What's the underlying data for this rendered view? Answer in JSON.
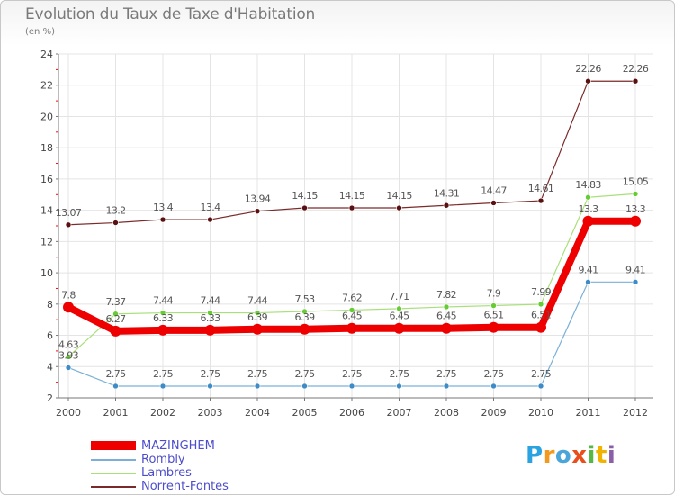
{
  "title": "Evolution du Taux de Taxe d'Habitation",
  "unit": "(en %)",
  "logo_text": "Proxiti",
  "colors": {
    "grid": "#e4e4e4",
    "axis": "#777777",
    "tick_text": "#444444",
    "label_text": "#555555",
    "minor_tick": "#ff0000",
    "legend_text": "#4c4ccc"
  },
  "chart_data": {
    "type": "line",
    "title": "Evolution du Taux de Taxe d'Habitation",
    "ylabel": "(en %)",
    "xlabel": "",
    "ylim": [
      2,
      24
    ],
    "yticks": [
      2,
      4,
      6,
      8,
      10,
      12,
      14,
      16,
      18,
      20,
      22,
      24
    ],
    "grid": true,
    "legend_position": "bottom-left",
    "x": [
      "2000",
      "2001",
      "2002",
      "2003",
      "2004",
      "2005",
      "2006",
      "2007",
      "2008",
      "2009",
      "2010",
      "2011",
      "2012"
    ],
    "series": [
      {
        "name": "Norrent-Fontes",
        "color": "#7a2a2a",
        "marker": "#5a1010",
        "width": 1.2,
        "values": [
          13.07,
          13.2,
          13.4,
          13.4,
          13.94,
          14.15,
          14.15,
          14.15,
          14.31,
          14.47,
          14.61,
          22.26,
          22.26
        ],
        "labels": [
          "13.07",
          "13.2",
          "13.4",
          "13.4",
          "13.94",
          "14.15",
          "14.15",
          "14.15",
          "14.31",
          "14.47",
          "14.61",
          "22.26",
          "22.26"
        ]
      },
      {
        "name": "Lambres",
        "color": "#a8e07a",
        "marker": "#66cc33",
        "width": 1.2,
        "values": [
          4.63,
          7.37,
          7.44,
          7.44,
          7.44,
          7.53,
          7.62,
          7.71,
          7.82,
          7.9,
          7.99,
          14.83,
          15.05
        ],
        "labels": [
          "4.63",
          "7.37",
          "7.44",
          "7.44",
          "7.44",
          "7.53",
          "7.62",
          "7.71",
          "7.82",
          "7.9",
          "7.99",
          "14.83",
          "15.05"
        ]
      },
      {
        "name": "Rombly",
        "color": "#7ab0d8",
        "marker": "#3d8cc8",
        "width": 1.2,
        "values": [
          3.93,
          2.75,
          2.75,
          2.75,
          2.75,
          2.75,
          2.75,
          2.75,
          2.75,
          2.75,
          2.75,
          9.41,
          9.41
        ],
        "labels": [
          "3.93",
          "2.75",
          "2.75",
          "2.75",
          "2.75",
          "2.75",
          "2.75",
          "2.75",
          "2.75",
          "2.75",
          "2.75",
          "9.41",
          "9.41"
        ]
      },
      {
        "name": "MAZINGHEM",
        "color": "#ee0000",
        "marker": "#ee0000",
        "width": 8,
        "values": [
          7.8,
          6.27,
          6.33,
          6.33,
          6.39,
          6.39,
          6.45,
          6.45,
          6.45,
          6.51,
          6.51,
          13.3,
          13.3
        ],
        "labels": [
          "7.8",
          "6.27",
          "6.33",
          "6.33",
          "6.39",
          "6.39",
          "6.45",
          "6.45",
          "6.45",
          "6.51",
          "6.51",
          "13.3",
          "13.3"
        ]
      }
    ],
    "legend": [
      "MAZINGHEM",
      "Rombly",
      "Lambres",
      "Norrent-Fontes"
    ]
  }
}
